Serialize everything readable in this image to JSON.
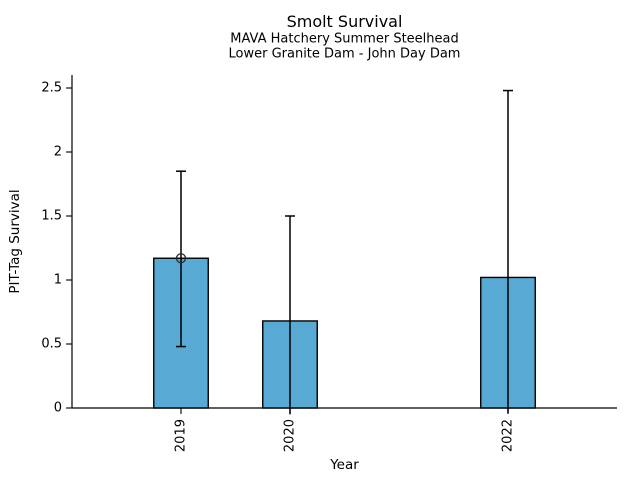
{
  "chart_data": {
    "type": "bar",
    "title": "Smolt Survival",
    "subtitle_line1": "MAVA Hatchery Summer Steelhead",
    "subtitle_line2": "Lower Granite Dam - John Day Dam",
    "xlabel": "Year",
    "ylabel": "PIT-Tag Survival",
    "categories": [
      "2019",
      "2020",
      "2022"
    ],
    "x_values": [
      2019,
      2020,
      2022
    ],
    "values": [
      1.17,
      0.68,
      1.02
    ],
    "error_low": [
      0.48,
      -0.05,
      -0.04
    ],
    "error_high": [
      1.85,
      1.5,
      2.48
    ],
    "error_caps_low": [
      true,
      false,
      false
    ],
    "error_caps_high": [
      true,
      true,
      true
    ],
    "marker": {
      "x": 2019,
      "y": 1.17,
      "shape": "open-circle"
    },
    "yticks": [
      0,
      0.5,
      1,
      1.5,
      2,
      2.5
    ],
    "ytick_labels": [
      "0",
      "0.5",
      "1",
      "1.5",
      "2",
      "2.5"
    ],
    "xtick_labels": [
      "2019",
      "2020",
      "2022"
    ],
    "xlim": [
      2018,
      2023
    ],
    "ylim": [
      0,
      2.6
    ],
    "x_tick_rotation": 90,
    "grid": false,
    "bar_width_x": 0.5,
    "colors": {
      "bar_fill": "#58A9D4",
      "bar_edge": "#000000",
      "error_line": "#000000",
      "marker_edge": "#2b2b2b",
      "axis": "#000000",
      "text": "#000000"
    }
  }
}
